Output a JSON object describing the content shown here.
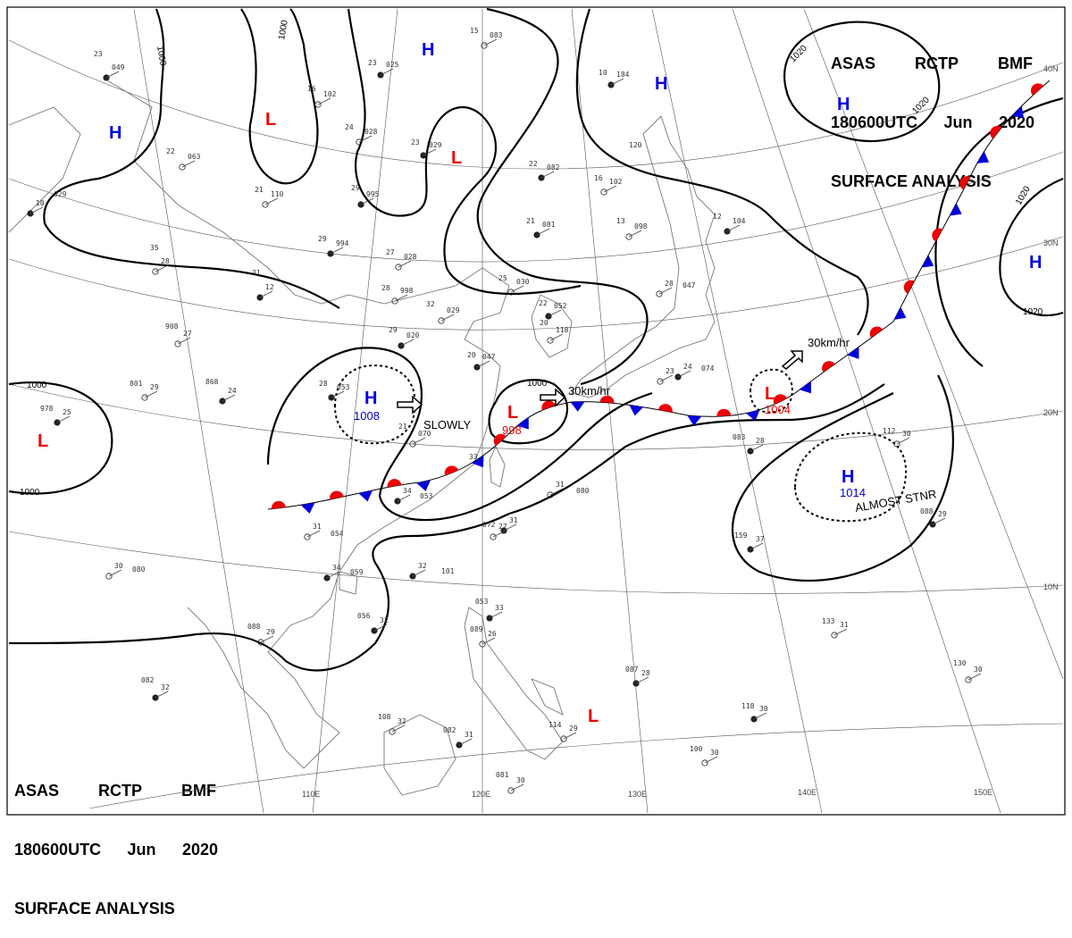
{
  "header": {
    "agency": "ASAS",
    "station": "RCTP",
    "office": "BMF",
    "valid": "180600UTC",
    "month": "Jun",
    "year": "2020",
    "product": "SURFACE ANALYSIS"
  },
  "lat_labels": [
    "40N",
    "30N",
    "20N",
    "10N"
  ],
  "lon_labels": [
    "110E",
    "120E",
    "130E",
    "140E",
    "150E"
  ],
  "pressure_centers": [
    {
      "kind": "H",
      "pressure": ""
    },
    {
      "kind": "H",
      "pressure": ""
    },
    {
      "kind": "H",
      "pressure": ""
    },
    {
      "kind": "H",
      "pressure": ""
    },
    {
      "kind": "H",
      "pressure": ""
    },
    {
      "kind": "H",
      "pressure": "1008"
    },
    {
      "kind": "H",
      "pressure": "1014"
    },
    {
      "kind": "L",
      "pressure": ""
    },
    {
      "kind": "L",
      "pressure": ""
    },
    {
      "kind": "L",
      "pressure": ""
    },
    {
      "kind": "L",
      "pressure": "998"
    },
    {
      "kind": "L",
      "pressure": "1004"
    },
    {
      "kind": "L",
      "pressure": ""
    }
  ],
  "isobar_labels": [
    "1000",
    "1000",
    "1000",
    "1000",
    "1000",
    "1020",
    "1020",
    "1020",
    "1020"
  ],
  "motion_labels": [
    "SLOWLY",
    "30km/hr",
    "30km/hr",
    "ALMOST STNR"
  ],
  "colors": {
    "high": "#0000dd",
    "low": "#ee0000",
    "warm_front": "#ee0000",
    "cold_front": "#0000dd"
  },
  "station_values": [
    "23",
    "049",
    "22",
    "063",
    "029",
    "10",
    "35",
    "28",
    "31",
    "12",
    "908",
    "27",
    "868",
    "24",
    "801",
    "29",
    "978",
    "25",
    "16",
    "102",
    "23",
    "025",
    "24",
    "028",
    "23",
    "029",
    "21",
    "110",
    "29",
    "994",
    "27",
    "028",
    "29",
    "995",
    "28",
    "998",
    "29",
    "020",
    "32",
    "029",
    "28",
    "053",
    "21",
    "070",
    "20",
    "047",
    "25",
    "030",
    "22",
    "052",
    "20",
    "118",
    "22",
    "082",
    "16",
    "102",
    "21",
    "081",
    "13",
    "098",
    "12",
    "104",
    "15",
    "083",
    "10",
    "184",
    "120",
    "28",
    "047",
    "24",
    "074",
    "23",
    "33",
    "34",
    "053",
    "31",
    "054",
    "34",
    "059",
    "30",
    "080",
    "32",
    "101",
    "31",
    "080",
    "31",
    "072",
    "27",
    "053",
    "33",
    "089",
    "26",
    "056",
    "32",
    "088",
    "29",
    "082",
    "32",
    "108",
    "32",
    "082",
    "31",
    "081",
    "30",
    "087",
    "28",
    "114",
    "29",
    "083",
    "28",
    "112",
    "30",
    "159",
    "37",
    "133",
    "31",
    "118",
    "30",
    "100",
    "30",
    "088",
    "29",
    "130",
    "30",
    "100"
  ]
}
